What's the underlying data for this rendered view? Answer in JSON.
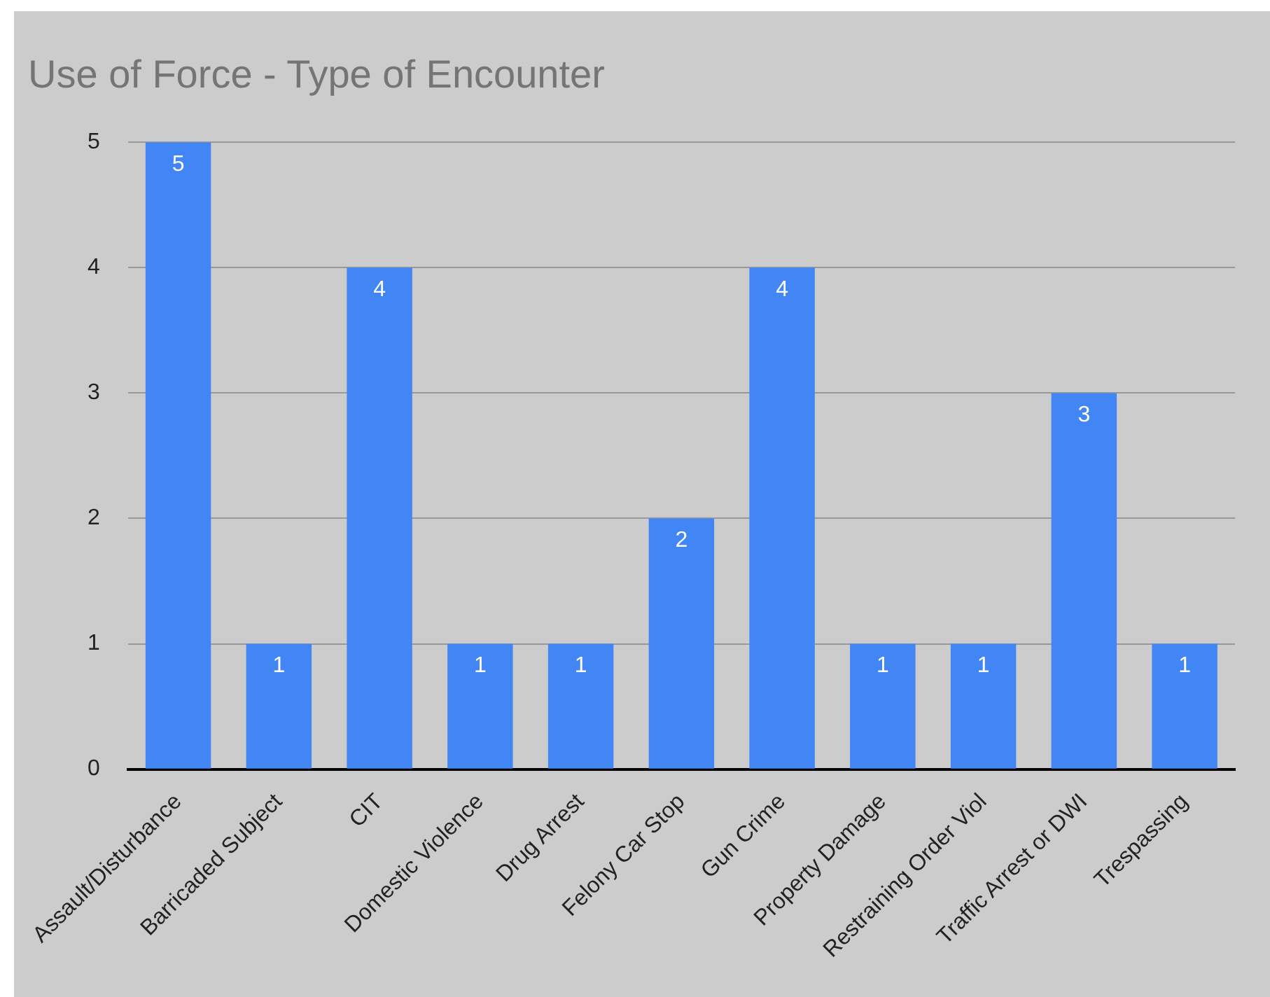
{
  "chart_data": {
    "type": "bar",
    "title": "Use of Force - Type of Encounter",
    "categories": [
      "Assault/Disturbance",
      "Barricaded Subject",
      "CIT",
      "Domestic Violence",
      "Drug Arrest",
      "Felony Car Stop",
      "Gun Crime",
      "Property Damage",
      "Restraining Order Viol",
      "Traffic Arrest or DWI",
      "Trespassing"
    ],
    "values": [
      5,
      1,
      4,
      1,
      1,
      2,
      4,
      1,
      1,
      3,
      1
    ],
    "color": "#4285f4",
    "ylim": [
      0,
      5
    ],
    "yticks": [
      0,
      1,
      2,
      3,
      4,
      5
    ],
    "grid": "y",
    "legend": false,
    "data_labels": true
  }
}
